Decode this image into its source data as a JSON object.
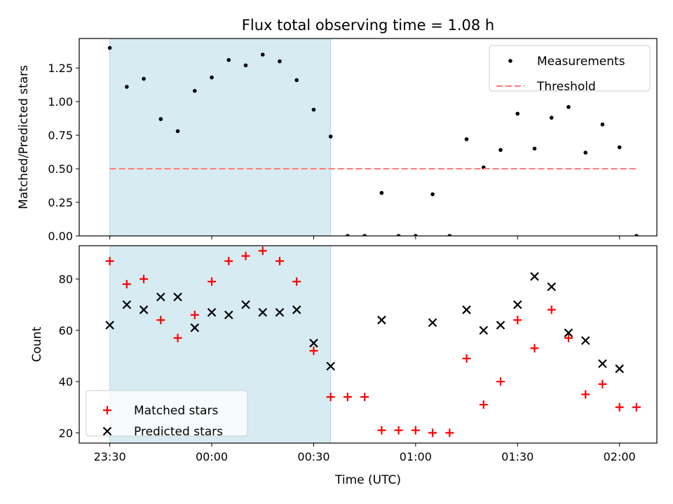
{
  "chart_data": {
    "title": "Flux total observing time = 1.08 h",
    "xlabel": "Time (UTC)",
    "x_ticks": [
      "23:30",
      "00:00",
      "00:30",
      "01:00",
      "01:30",
      "02:00"
    ],
    "shaded_span": {
      "start": "23:30",
      "end": "00:35",
      "color": "#add8e6"
    },
    "colors": {
      "measurement": "#000000",
      "threshold": "#ff7f7f",
      "matched": "#ff0000",
      "predicted": "#000000",
      "span": "#add8e6"
    },
    "panels": [
      {
        "type": "scatter",
        "ylabel": "Matched/Predicted stars",
        "ylim": [
          0,
          1.47
        ],
        "y_ticks": [
          "0.00",
          "0.25",
          "0.50",
          "0.75",
          "1.00",
          "1.25"
        ],
        "legend_position": "top-right",
        "series": [
          {
            "name": "Measurements",
            "marker": "dot",
            "points": [
              [
                "23:30",
                1.4
              ],
              [
                "23:35",
                1.11
              ],
              [
                "23:40",
                1.17
              ],
              [
                "23:45",
                0.87
              ],
              [
                "23:50",
                0.78
              ],
              [
                "23:55",
                1.08
              ],
              [
                "00:00",
                1.18
              ],
              [
                "00:05",
                1.31
              ],
              [
                "00:10",
                1.27
              ],
              [
                "00:15",
                1.35
              ],
              [
                "00:20",
                1.3
              ],
              [
                "00:25",
                1.16
              ],
              [
                "00:30",
                0.94
              ],
              [
                "00:35",
                0.74
              ],
              [
                "00:40",
                0.0
              ],
              [
                "00:45",
                0.0
              ],
              [
                "00:50",
                0.32
              ],
              [
                "00:55",
                0.0
              ],
              [
                "01:00",
                0.0
              ],
              [
                "01:05",
                0.31
              ],
              [
                "01:10",
                0.0
              ],
              [
                "01:15",
                0.72
              ],
              [
                "01:20",
                0.51
              ],
              [
                "01:25",
                0.64
              ],
              [
                "01:30",
                0.91
              ],
              [
                "01:35",
                0.65
              ],
              [
                "01:40",
                0.88
              ],
              [
                "01:45",
                0.96
              ],
              [
                "01:50",
                0.62
              ],
              [
                "01:55",
                0.83
              ],
              [
                "02:00",
                0.66
              ],
              [
                "02:05",
                0.0
              ]
            ]
          },
          {
            "name": "Threshold",
            "marker": "dashed-line",
            "value": 0.5,
            "x_range": [
              "23:30",
              "02:05"
            ]
          }
        ]
      },
      {
        "type": "scatter",
        "ylabel": "Count",
        "ylim": [
          16,
          93
        ],
        "y_ticks": [
          "20",
          "40",
          "60",
          "80"
        ],
        "legend_position": "bottom-left",
        "series": [
          {
            "name": "Matched stars",
            "marker": "plus",
            "points": [
              [
                "23:30",
                87
              ],
              [
                "23:35",
                78
              ],
              [
                "23:40",
                80
              ],
              [
                "23:45",
                64
              ],
              [
                "23:50",
                57
              ],
              [
                "23:55",
                66
              ],
              [
                "00:00",
                79
              ],
              [
                "00:05",
                87
              ],
              [
                "00:10",
                89
              ],
              [
                "00:15",
                91
              ],
              [
                "00:20",
                87
              ],
              [
                "00:25",
                79
              ],
              [
                "00:30",
                52
              ],
              [
                "00:35",
                34
              ],
              [
                "00:40",
                34
              ],
              [
                "00:45",
                34
              ],
              [
                "00:50",
                21
              ],
              [
                "00:55",
                21
              ],
              [
                "01:00",
                21
              ],
              [
                "01:05",
                20
              ],
              [
                "01:10",
                20
              ],
              [
                "01:15",
                49
              ],
              [
                "01:20",
                31
              ],
              [
                "01:25",
                40
              ],
              [
                "01:30",
                64
              ],
              [
                "01:35",
                53
              ],
              [
                "01:40",
                68
              ],
              [
                "01:45",
                57
              ],
              [
                "01:50",
                35
              ],
              [
                "01:55",
                39
              ],
              [
                "02:00",
                30
              ],
              [
                "02:05",
                30
              ]
            ]
          },
          {
            "name": "Predicted stars",
            "marker": "x",
            "points": [
              [
                "23:30",
                62
              ],
              [
                "23:35",
                70
              ],
              [
                "23:40",
                68
              ],
              [
                "23:45",
                73
              ],
              [
                "23:50",
                73
              ],
              [
                "23:55",
                61
              ],
              [
                "00:00",
                67
              ],
              [
                "00:05",
                66
              ],
              [
                "00:10",
                70
              ],
              [
                "00:15",
                67
              ],
              [
                "00:20",
                67
              ],
              [
                "00:25",
                68
              ],
              [
                "00:30",
                55
              ],
              [
                "00:35",
                46
              ],
              [
                "00:50",
                64
              ],
              [
                "01:05",
                63
              ],
              [
                "01:15",
                68
              ],
              [
                "01:20",
                60
              ],
              [
                "01:25",
                62
              ],
              [
                "01:30",
                70
              ],
              [
                "01:35",
                81
              ],
              [
                "01:40",
                77
              ],
              [
                "01:45",
                59
              ],
              [
                "01:50",
                56
              ],
              [
                "01:55",
                47
              ],
              [
                "02:00",
                45
              ]
            ]
          }
        ]
      }
    ]
  }
}
